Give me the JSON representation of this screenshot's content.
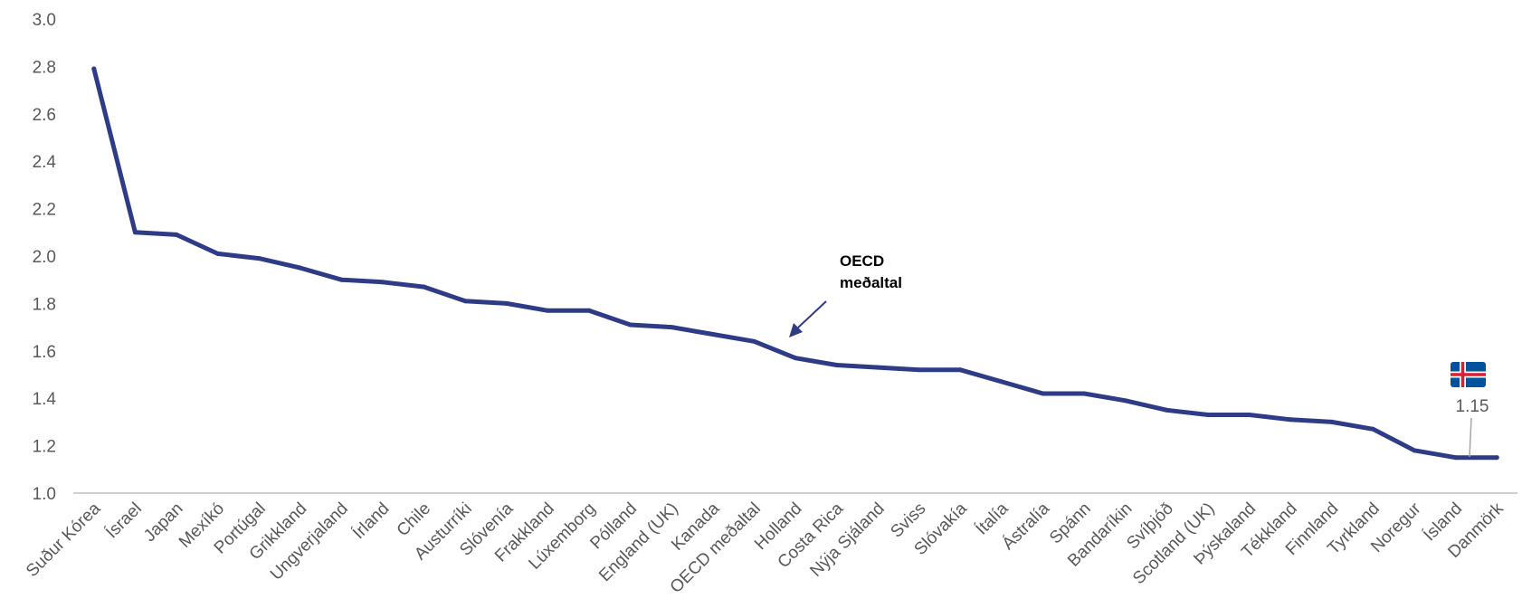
{
  "chart_data": {
    "type": "line",
    "categories": [
      "Suður Kórea",
      "Ísrael",
      "Japan",
      "Mexíkó",
      "Portúgal",
      "Grikkland",
      "Ungverjaland",
      "Írland",
      "Chile",
      "Austurríki",
      "Slóvenía",
      "Frakkland",
      "Lúxemborg",
      "Pólland",
      "England (UK)",
      "Kanada",
      "OECD meðaltal",
      "Holland",
      "Costa Rica",
      "Nýja Sjáland",
      "Sviss",
      "Slóvakía",
      "Ítalía",
      "Ástralía",
      "Spánn",
      "Bandaríkin",
      "Svíþjóð",
      "Scotland (UK)",
      "Þýskaland",
      "Tékkland",
      "Finnland",
      "Tyrkland",
      "Noregur",
      "Ísland",
      "Danmörk"
    ],
    "series": [
      {
        "values": [
          2.79,
          2.1,
          2.09,
          2.01,
          1.99,
          1.95,
          1.9,
          1.89,
          1.87,
          1.81,
          1.8,
          1.77,
          1.77,
          1.71,
          1.7,
          1.67,
          1.64,
          1.57,
          1.54,
          1.53,
          1.52,
          1.52,
          1.47,
          1.42,
          1.42,
          1.39,
          1.35,
          1.33,
          1.33,
          1.31,
          1.3,
          1.27,
          1.18,
          1.15,
          1.15
        ],
        "color": "#2E3C87"
      }
    ],
    "ylim": [
      1.0,
      3.0
    ],
    "yticks": [
      "1.0",
      "1.2",
      "1.4",
      "1.6",
      "1.8",
      "2.0",
      "2.2",
      "2.4",
      "2.6",
      "2.8",
      "3.0"
    ],
    "grid": false,
    "annotations": {
      "oecd_line1": "OECD",
      "oecd_line2": "meðaltal",
      "iceland_value_label": "1.15"
    },
    "colors": {
      "line": "#2E3C87",
      "arrow": "#2E3C87",
      "axis": "#BFBFBF",
      "flag_blue": "#02529C",
      "flag_red": "#DC1E35"
    }
  }
}
